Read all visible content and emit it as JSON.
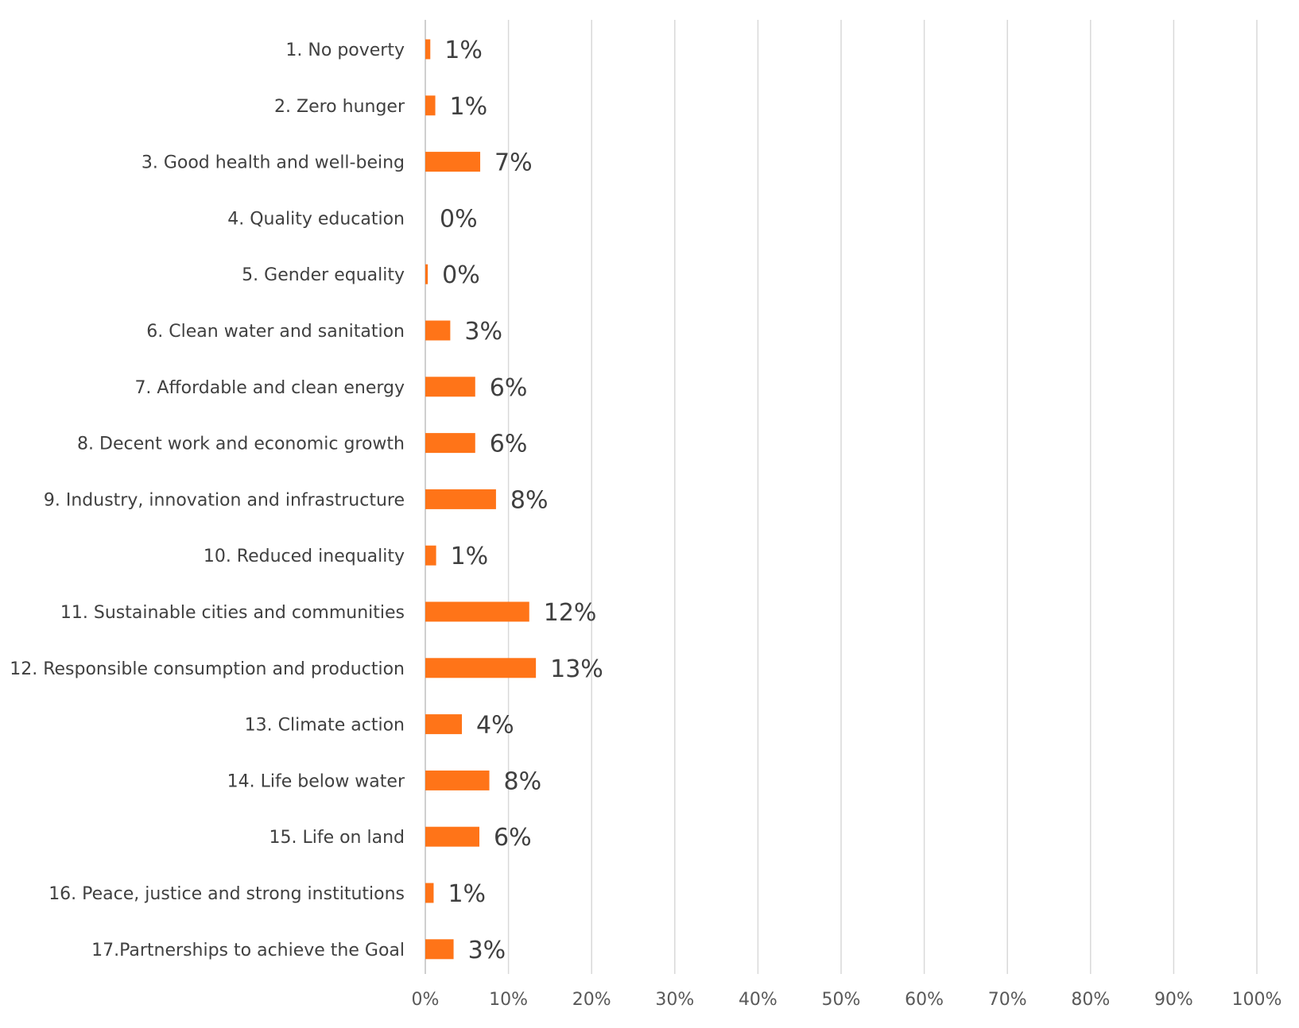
{
  "chart_data": {
    "type": "bar",
    "orientation": "horizontal",
    "title": "",
    "xlabel": "",
    "ylabel": "",
    "categories": [
      "1. No poverty",
      "2. Zero hunger",
      "3. Good health and well-being",
      "4. Quality education",
      "5. Gender equality",
      "6. Clean water and sanitation",
      "7. Affordable and clean energy",
      "8. Decent work and economic growth",
      "9. Industry, innovation and infrastructure",
      "10. Reduced inequality",
      "11. Sustainable cities and communities",
      "12. Responsible consumption and production",
      "13. Climate action",
      "14. Life below water",
      "15. Life on land",
      "16. Peace, justice and strong institutions",
      "17.Partnerships to achieve the Goal"
    ],
    "values": [
      0.6,
      1.2,
      6.6,
      0,
      0.3,
      3.0,
      6.0,
      6.0,
      8.5,
      1.3,
      12.5,
      13.3,
      4.4,
      7.7,
      6.5,
      1.0,
      3.4
    ],
    "value_labels": [
      "1%",
      "1%",
      "7%",
      "0%",
      "0%",
      "3%",
      "6%",
      "6%",
      "8%",
      "1%",
      "12%",
      "13%",
      "4%",
      "8%",
      "6%",
      "1%",
      "3%"
    ],
    "xlim": [
      0,
      100
    ],
    "x_ticks": [
      0,
      10,
      20,
      30,
      40,
      50,
      60,
      70,
      80,
      90,
      100
    ],
    "x_tick_labels": [
      "0%",
      "10%",
      "20%",
      "30%",
      "40%",
      "50%",
      "60%",
      "70%",
      "80%",
      "90%",
      "100%"
    ],
    "grid": true,
    "legend": "none",
    "colors": {
      "bar": "#ff7418",
      "grid": "#d9d9d9",
      "text": "#404040"
    }
  }
}
